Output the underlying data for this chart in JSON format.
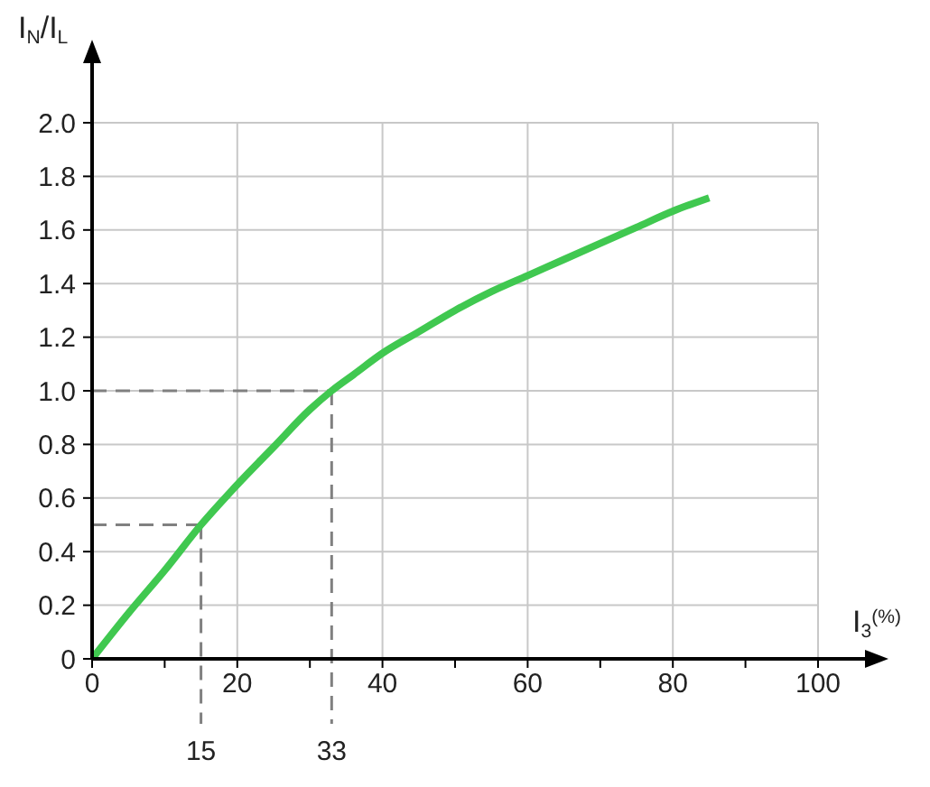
{
  "chart_data": {
    "type": "line",
    "xlabel": "I$_{3}$$^{(%)}$",
    "ylabel": "I$_{N}$/I$_{L}$",
    "x": [
      0,
      5,
      10,
      15,
      20,
      25,
      30,
      33,
      36,
      40,
      45,
      50,
      55,
      60,
      65,
      70,
      75,
      80,
      85
    ],
    "series": [
      {
        "color": "#40c850",
        "values": [
          0,
          0.17,
          0.33,
          0.5,
          0.65,
          0.79,
          0.93,
          1.0,
          1.06,
          1.14,
          1.22,
          1.3,
          1.37,
          1.43,
          1.49,
          1.55,
          1.61,
          1.67,
          1.72
        ]
      }
    ],
    "xlim": [
      0,
      100
    ],
    "xticks": [
      0,
      {
        "value": 10,
        "label": null
      },
      20,
      {
        "value": 30,
        "label": null
      },
      40,
      {
        "value": 50,
        "label": null
      },
      60,
      {
        "value": 70,
        "label": null
      },
      80,
      {
        "value": 90,
        "label": null
      },
      100
    ],
    "ylim": [
      0,
      2
    ],
    "yticks": [
      0,
      0.2,
      0.4,
      0.6,
      0.8,
      {
        "value": 1,
        "label": "1.0"
      },
      1.2,
      1.4,
      1.6,
      1.8,
      {
        "value": 2,
        "label": "2.0"
      }
    ],
    "grid": true,
    "marker": "none",
    "line_style": "solid",
    "ref_lines": [
      {
        "axis": "x",
        "value": 15,
        "label": "15",
        "color": "#808080",
        "line_style": "dashed"
      },
      {
        "axis": "y",
        "value": 0.5,
        "color": "#808080",
        "line_style": "dashed"
      },
      {
        "axis": "x",
        "value": 33,
        "label": "33",
        "color": "#808080",
        "line_style": "dashed"
      },
      {
        "axis": "y",
        "value": 1,
        "color": "#808080",
        "line_style": "dashed"
      }
    ]
  }
}
